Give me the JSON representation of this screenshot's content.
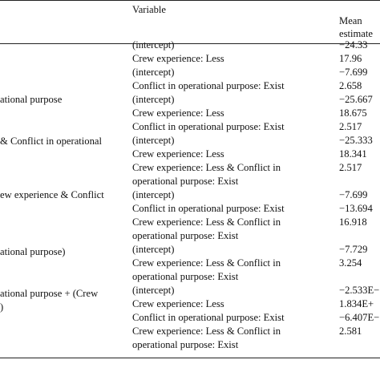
{
  "header": {
    "variable": "Variable",
    "mean_line1": "Mean",
    "mean_line2": "estimate"
  },
  "left_labels": [
    "ational purpose",
    "& Conflict in operational",
    "ew experience & Conflict",
    "ational purpose)",
    "ational purpose + (Crew",
    ")"
  ],
  "rows": [
    {
      "var": "(intercept)",
      "mean": "−24.33"
    },
    {
      "var": "Crew experience: Less",
      "mean": "17.96"
    },
    {
      "var": "(intercept)",
      "mean": "−7.699"
    },
    {
      "var": "Conflict in operational purpose: Exist",
      "mean": "2.658"
    },
    {
      "var": "(intercept)",
      "mean": "−25.667"
    },
    {
      "var": "Crew experience: Less",
      "mean": "18.675"
    },
    {
      "var": "Conflict in operational purpose: Exist",
      "mean": "2.517"
    },
    {
      "var": "(intercept)",
      "mean": "−25.333"
    },
    {
      "var": "Crew experience: Less",
      "mean": "18.341"
    },
    {
      "var": "Crew experience: Less & Conflict in",
      "mean": "2.517"
    },
    {
      "var": "operational purpose: Exist",
      "mean": ""
    },
    {
      "var": "(intercept)",
      "mean": "−7.699"
    },
    {
      "var": "Conflict in operational purpose: Exist",
      "mean": "−13.694"
    },
    {
      "var": "Crew experience: Less & Conflict in",
      "mean": "16.918"
    },
    {
      "var": "operational purpose: Exist",
      "mean": ""
    },
    {
      "var": "(intercept)",
      "mean": "−7.729"
    },
    {
      "var": "Crew experience: Less & Conflict in",
      "mean": "3.254"
    },
    {
      "var": "operational purpose: Exist",
      "mean": ""
    },
    {
      "var": "(intercept)",
      "mean": "−2.533E−"
    },
    {
      "var": "Crew experience: Less",
      "mean": "1.834E+"
    },
    {
      "var": "Conflict in operational purpose: Exist",
      "mean": "−6.407E−"
    },
    {
      "var": "Crew experience: Less & Conflict in",
      "mean": "2.581"
    },
    {
      "var": "operational purpose: Exist",
      "mean": ""
    }
  ]
}
